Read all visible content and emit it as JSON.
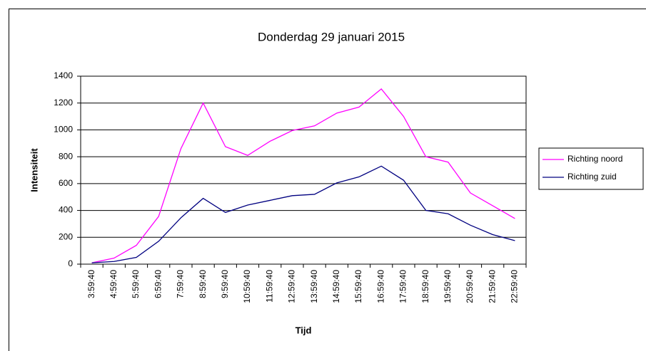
{
  "chart_data": {
    "type": "line",
    "title": "Donderdag 29 januari 2015",
    "x_label": "Tijd",
    "y_label": "Intensiteit",
    "categories": [
      "3:59:40",
      "4:59:40",
      "5:59:40",
      "6:59:40",
      "7:59:40",
      "8:59:40",
      "9:59:40",
      "10:59:40",
      "11:59:40",
      "12:59:40",
      "13:59:40",
      "14:59:40",
      "15:59:40",
      "16:59:40",
      "17:59:40",
      "18:59:40",
      "19:59:40",
      "20:59:40",
      "21:59:40",
      "22:59:40"
    ],
    "series": [
      {
        "name": "Richting noord",
        "color": "#ff00ff",
        "values": [
          10,
          45,
          140,
          355,
          860,
          1200,
          875,
          810,
          915,
          995,
          1030,
          1125,
          1170,
          1305,
          1100,
          800,
          760,
          530,
          435,
          340
        ]
      },
      {
        "name": "Richting zuid",
        "color": "#000080",
        "values": [
          10,
          20,
          50,
          170,
          345,
          490,
          385,
          440,
          475,
          510,
          520,
          605,
          650,
          730,
          625,
          400,
          375,
          290,
          220,
          175
        ]
      }
    ],
    "ylim": [
      0,
      1400
    ],
    "yticks": [
      0,
      200,
      400,
      600,
      800,
      1000,
      1200,
      1400
    ],
    "grid": true,
    "legend": "right"
  }
}
